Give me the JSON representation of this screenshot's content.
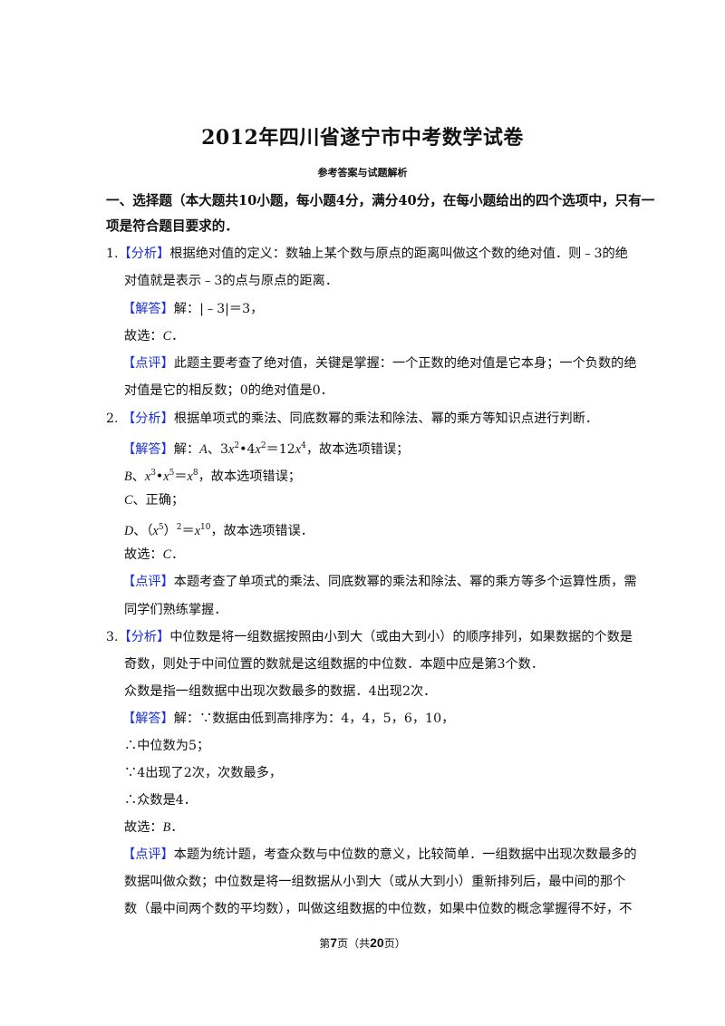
{
  "document": {
    "title": "2012年四川省遂宁市中考数学试卷",
    "subtitle": "参考答案与试题解析",
    "lines": [
      [
        {
          "t": "一、选择题（本大题共10小题，每小题4分，满分40分，在每小题给出的四个选项中，只有一"
        }
      ],
      [
        {
          "t": "项是符合题目要求的．"
        }
      ],
      [
        {
          "t": "1."
        },
        {
          "t": "【分析】",
          "s": "tag"
        },
        {
          "t": "根据绝对值的定义：数轴上某个数与原点的距离叫做这个数的绝对值．则﹣3的绝"
        }
      ],
      [
        {
          "t": "对值就是表示﹣3的点与原点的距离．"
        }
      ],
      [
        {
          "t": "【解答】",
          "s": "tag"
        },
        {
          "t": "解：|﹣3|＝3，"
        }
      ],
      [
        {
          "t": "故选："
        },
        {
          "t": "C",
          "s": "i"
        },
        {
          "t": "．"
        }
      ],
      [
        {
          "t": "【点评】",
          "s": "tag"
        },
        {
          "t": "此题主要考查了绝对值，关键是掌握：一个正数的绝对值是它本身；一个负数的绝"
        }
      ],
      [
        {
          "t": "对值是它的相反数；0的绝对值是0．"
        }
      ],
      [
        {
          "t": "2. "
        },
        {
          "t": "【分析】",
          "s": "tag"
        },
        {
          "t": "根据单项式的乘法、同底数幂的乘法和除法、幂的乘方等知识点进行判断．"
        }
      ],
      [
        {
          "t": "【解答】",
          "s": "tag"
        },
        {
          "t": "解："
        },
        {
          "t": "A",
          "s": "i"
        },
        {
          "t": "、3"
        },
        {
          "t": "x",
          "s": "i"
        },
        {
          "t": "2",
          "s": "sup"
        },
        {
          "t": "•4"
        },
        {
          "t": "x",
          "s": "i"
        },
        {
          "t": "2",
          "s": "sup"
        },
        {
          "t": "＝12"
        },
        {
          "t": "x",
          "s": "i"
        },
        {
          "t": "4",
          "s": "sup"
        },
        {
          "t": "，故本选项错误；"
        }
      ],
      [
        {
          "t": "B",
          "s": "i"
        },
        {
          "t": "、"
        },
        {
          "t": "x",
          "s": "i"
        },
        {
          "t": "3",
          "s": "sup"
        },
        {
          "t": "•"
        },
        {
          "t": "x",
          "s": "i"
        },
        {
          "t": "5",
          "s": "sup"
        },
        {
          "t": "＝"
        },
        {
          "t": "x",
          "s": "i"
        },
        {
          "t": "8",
          "s": "sup"
        },
        {
          "t": "，故本选项错误；"
        }
      ],
      [
        {
          "t": "C",
          "s": "i"
        },
        {
          "t": "、正确；"
        }
      ],
      [
        {
          "t": "D",
          "s": "i"
        },
        {
          "t": "、（"
        },
        {
          "t": "x",
          "s": "i"
        },
        {
          "t": "5",
          "s": "sup"
        },
        {
          "t": "）"
        },
        {
          "t": "2",
          "s": "sup"
        },
        {
          "t": "＝"
        },
        {
          "t": "x",
          "s": "i"
        },
        {
          "t": "10",
          "s": "sup"
        },
        {
          "t": "，故本选项错误．"
        }
      ],
      [
        {
          "t": "故选："
        },
        {
          "t": "C",
          "s": "i"
        },
        {
          "t": "．"
        }
      ],
      [
        {
          "t": "【点评】",
          "s": "tag"
        },
        {
          "t": "本题考查了单项式的乘法、同底数幂的乘法和除法、幂的乘方等多个运算性质，需"
        }
      ],
      [
        {
          "t": "同学们熟练掌握．"
        }
      ],
      [
        {
          "t": "3."
        },
        {
          "t": "【分析】",
          "s": "tag"
        },
        {
          "t": "中位数是将一组数据按照由小到大（或由大到小）的顺序排列，如果数据的个数是"
        }
      ],
      [
        {
          "t": "奇数，则处于中间位置的数就是这组数据的中位数．本题中应是第3个数．"
        }
      ],
      [
        {
          "t": "众数是指一组数据中出现次数最多的数据．4出现2次．"
        }
      ],
      [
        {
          "t": "【解答】",
          "s": "tag"
        },
        {
          "t": "解：∵数据由低到高排序为：4，4，5，6，10，"
        }
      ],
      [
        {
          "t": "∴中位数为5；"
        }
      ],
      [
        {
          "t": "∵4出现了2次，次数最多，"
        }
      ],
      [
        {
          "t": "∴众数是4．"
        }
      ],
      [
        {
          "t": "故选："
        },
        {
          "t": "B",
          "s": "i"
        },
        {
          "t": "．"
        }
      ],
      [
        {
          "t": "【点评】",
          "s": "tag"
        },
        {
          "t": "本题为统计题，考查众数与中位数的意义，比较简单．一组数据中出现次数最多的"
        }
      ],
      [
        {
          "t": "数据叫做众数；中位数是将一组数据从小到大（或从大到小）重新排列后，最中间的那个"
        }
      ],
      [
        {
          "t": "数（最中间两个数的平均数），叫做这组数据的中位数，如果中位数的概念掌握得不好，不"
        }
      ]
    ],
    "footer": {
      "prefix": "第",
      "page": "7",
      "mid": "页（共",
      "total": "20",
      "suffix": "页）"
    }
  },
  "colors": {
    "tag": "#1a2fd6",
    "text": "#111111"
  }
}
